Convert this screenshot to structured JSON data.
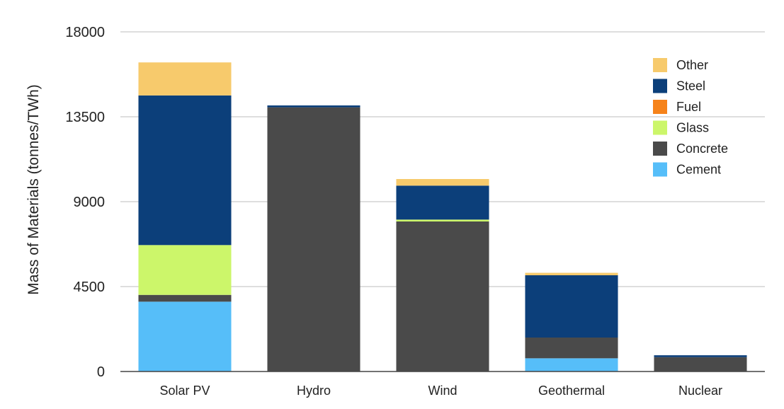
{
  "chart_data": {
    "type": "bar",
    "stacked": true,
    "title": "",
    "xlabel": "",
    "ylabel": "Mass of Materials (tonnes/TWh)",
    "ylim": [
      0,
      18000
    ],
    "yticks": [
      0,
      4500,
      9000,
      13500,
      18000
    ],
    "ytick_labels": [
      "0",
      "4500",
      "9000",
      "13500",
      "18000"
    ],
    "grid": true,
    "legend_position": "top-right",
    "categories": [
      "Solar PV",
      "Hydro",
      "Wind",
      "Geothermal",
      "Nuclear"
    ],
    "series": [
      {
        "name": "Cement",
        "color": "#56bef9",
        "values": [
          3700,
          0,
          0,
          700,
          0
        ]
      },
      {
        "name": "Concrete",
        "color": "#4a4a4a",
        "values": [
          360,
          14000,
          7950,
          1100,
          760
        ]
      },
      {
        "name": "Glass",
        "color": "#ccf66a",
        "values": [
          2640,
          0,
          100,
          0,
          0
        ]
      },
      {
        "name": "Fuel",
        "color": "#f6831a",
        "values": [
          0,
          0,
          0,
          0,
          0
        ]
      },
      {
        "name": "Steel",
        "color": "#0c3f7a",
        "values": [
          7930,
          100,
          1800,
          3300,
          100
        ]
      },
      {
        "name": "Other",
        "color": "#f7ca6c",
        "values": [
          1750,
          0,
          350,
          130,
          0
        ]
      }
    ],
    "legend_order": [
      "Other",
      "Steel",
      "Fuel",
      "Glass",
      "Concrete",
      "Cement"
    ]
  }
}
